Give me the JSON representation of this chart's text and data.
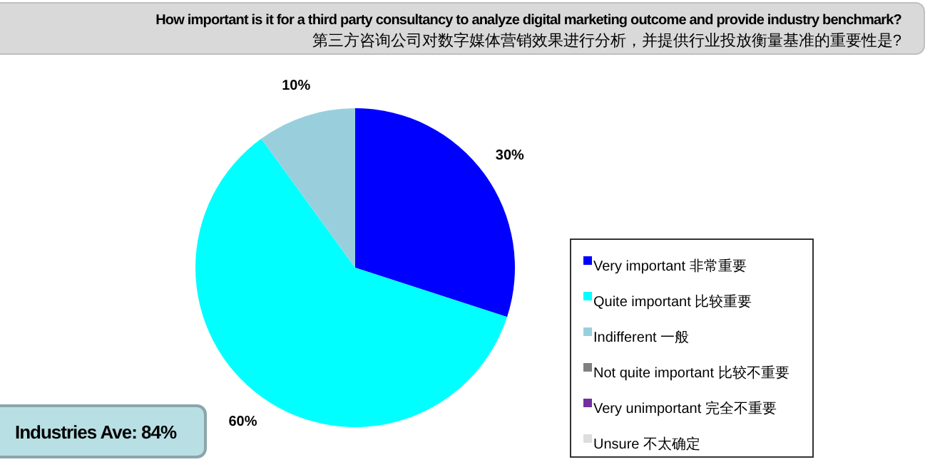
{
  "chart_data": {
    "type": "pie",
    "title": "How important is it for a third party consultancy to analyze digital marketing outcome and provide industry benchmark?",
    "subtitle": "第三方咨询公司对数字媒体营销效果进行分析，并提供行业投放衡量基准的重要性是?",
    "categories": [
      "Very important 非常重要",
      "Quite important 比较重要",
      "Indifferent 一般",
      "Not quite important 比较不重要",
      "Very unimportant 完全不重要",
      "Unsure 不太确定"
    ],
    "values": [
      30,
      60,
      10,
      0,
      0,
      0
    ],
    "colors": [
      "#0000ff",
      "#00ffff",
      "#99cfdd",
      "#808080",
      "#7030a0",
      "#dddddd"
    ],
    "value_labels": [
      "30%",
      "60%",
      "10%",
      null,
      null,
      null
    ],
    "legend": "right",
    "annotations": [
      "Industries Ave: 84%"
    ]
  }
}
